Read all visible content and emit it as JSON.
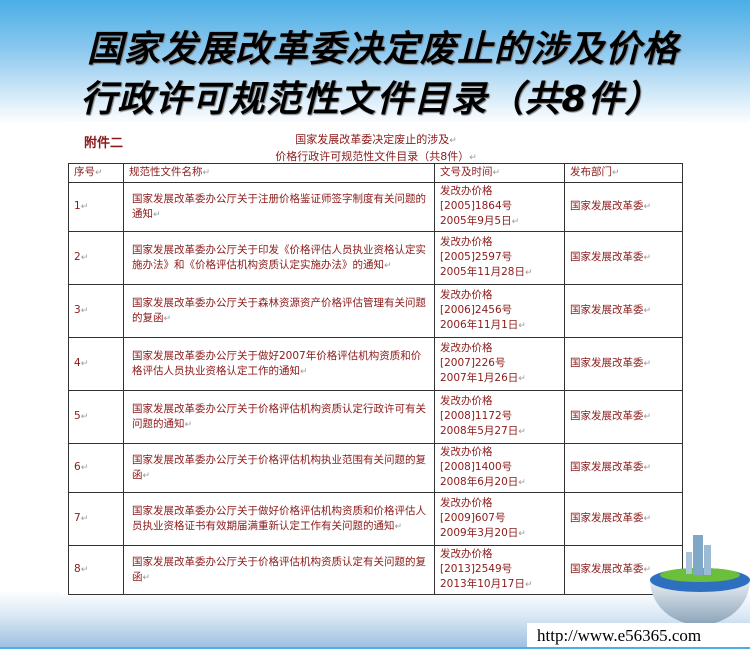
{
  "slide": {
    "title_line1": "国家发展改革委决定废止的涉及价格",
    "title_line2": "行政许可规范性文件目录（共8件）"
  },
  "document": {
    "attachment_label": "附件二",
    "subtitle_line1": "国家发展改革委决定废止的涉及",
    "subtitle_line2": "价格行政许可规范性文件目录（共8件）",
    "headers": [
      "序号",
      "规范性文件名称",
      "文号及时间",
      "发布部门"
    ],
    "rows": [
      {
        "no": "1",
        "name": "国家发展改革委办公厅关于注册价格鉴证师签字制度有关问题的通知",
        "doc": "发改办价格",
        "num": "[2005]1864号",
        "date": "2005年9月5日",
        "dept": "国家发展改革委"
      },
      {
        "no": "2",
        "name": "国家发展改革委办公厅关于印发《价格评估人员执业资格认定实施办法》和《价格评估机构资质认定实施办法》的通知",
        "doc": "发改办价格",
        "num": "[2005]2597号",
        "date": "2005年11月28日",
        "dept": "国家发展改革委"
      },
      {
        "no": "3",
        "name": "国家发展改革委办公厅关于森林资源资产价格评估管理有关问题的复函",
        "doc": "发改办价格",
        "num": "[2006]2456号",
        "date": "2006年11月1日",
        "dept": "国家发展改革委"
      },
      {
        "no": "4",
        "name": "国家发展改革委办公厅关于做好2007年价格评估机构资质和价格评估人员执业资格认定工作的通知",
        "doc": "发改办价格",
        "num": "[2007]226号",
        "date": "2007年1月26日",
        "dept": "国家发展改革委"
      },
      {
        "no": "5",
        "name": "国家发展改革委办公厅关于价格评估机构资质认定行政许可有关问题的通知",
        "doc": "发改办价格",
        "num": "[2008]1172号",
        "date": "2008年5月27日",
        "dept": "国家发展改革委"
      },
      {
        "no": "6",
        "name": "国家发展改革委办公厅关于价格评估机构执业范围有关问题的复函",
        "doc": "发改办价格",
        "num": "[2008]1400号",
        "date": "2008年6月20日",
        "dept": "国家发展改革委"
      },
      {
        "no": "7",
        "name": "国家发展改革委办公厅关于做好价格评估机构资质和价格评估人员执业资格证书有效期届满重新认定工作有关问题的通知",
        "doc": "发改办价格",
        "num": "[2009]607号",
        "date": "2009年3月20日",
        "dept": "国家发展改革委"
      },
      {
        "no": "8",
        "name": "国家发展改革委办公厅关于价格评估机构资质认定有关问题的复函",
        "doc": "发改办价格",
        "num": "[2013]2549号",
        "date": "2013年10月17日",
        "dept": "国家发展改革委"
      }
    ]
  },
  "footer": {
    "url": "http://www.e56365.com"
  },
  "colors": {
    "text_red": "#8b1a1a",
    "sky_blue": "#4aaee6"
  }
}
